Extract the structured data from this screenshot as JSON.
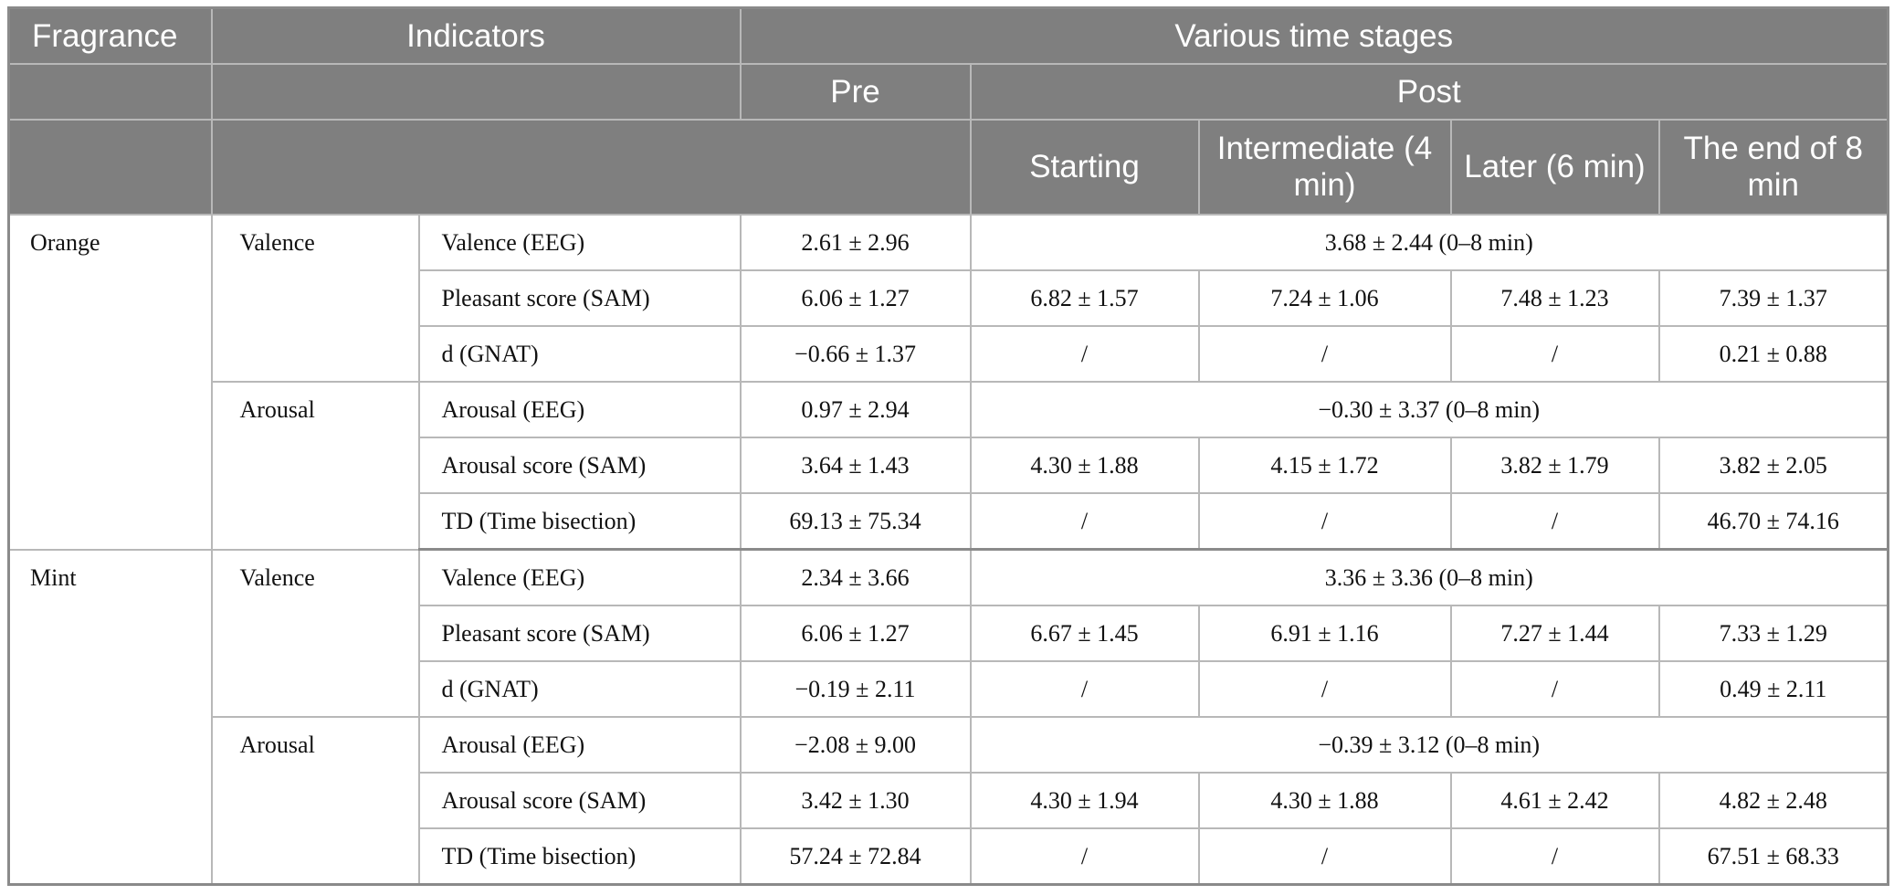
{
  "header": {
    "row1": {
      "fragrance": "Fragrance",
      "indicators": "Indicators",
      "time_stages": "Various time stages"
    },
    "row2": {
      "pre": "Pre",
      "post": "Post"
    },
    "row3": {
      "starting": "Starting",
      "intermediate": "Intermediate (4 min)",
      "later": "Later (6 min)",
      "end": "The end of 8 min"
    }
  },
  "blocks": [
    {
      "fragrance": "Orange",
      "groups": [
        {
          "name": "Valence",
          "rows": [
            {
              "indicator": "Valence (EEG)",
              "pre": "2.61 ± 2.96",
              "post_span": "3.68 ± 2.44 (0–8 min)"
            },
            {
              "indicator": "Pleasant score (SAM)",
              "pre": "6.06 ± 1.27",
              "starting": "6.82 ± 1.57",
              "intermediate": "7.24 ± 1.06",
              "later": "7.48 ± 1.23",
              "end": "7.39 ± 1.37"
            },
            {
              "indicator": "d (GNAT)",
              "pre": "−0.66 ± 1.37",
              "starting": "/",
              "intermediate": "/",
              "later": "/",
              "end": "0.21 ± 0.88"
            }
          ]
        },
        {
          "name": "Arousal",
          "rows": [
            {
              "indicator": "Arousal (EEG)",
              "pre": "0.97 ± 2.94",
              "post_span": "−0.30 ± 3.37 (0–8 min)"
            },
            {
              "indicator": "Arousal score (SAM)",
              "pre": "3.64 ± 1.43",
              "starting": "4.30 ± 1.88",
              "intermediate": "4.15 ± 1.72",
              "later": "3.82 ± 1.79",
              "end": "3.82 ± 2.05"
            },
            {
              "indicator": "TD (Time bisection)",
              "pre": "69.13 ± 75.34",
              "starting": "/",
              "intermediate": "/",
              "later": "/",
              "end": "46.70 ± 74.16"
            }
          ]
        }
      ]
    },
    {
      "fragrance": "Mint",
      "groups": [
        {
          "name": "Valence",
          "rows": [
            {
              "indicator": "Valence (EEG)",
              "pre": "2.34 ± 3.66",
              "post_span": "3.36 ± 3.36 (0–8 min)"
            },
            {
              "indicator": "Pleasant score (SAM)",
              "pre": "6.06 ± 1.27",
              "starting": "6.67 ± 1.45",
              "intermediate": "6.91 ± 1.16",
              "later": "7.27 ± 1.44",
              "end": "7.33 ± 1.29"
            },
            {
              "indicator": "d (GNAT)",
              "pre": "−0.19 ± 2.11",
              "starting": "/",
              "intermediate": "/",
              "later": "/",
              "end": "0.49 ± 2.11"
            }
          ]
        },
        {
          "name": "Arousal",
          "rows": [
            {
              "indicator": "Arousal (EEG)",
              "pre": "−2.08 ± 9.00",
              "post_span": "−0.39 ± 3.12 (0–8 min)"
            },
            {
              "indicator": "Arousal score (SAM)",
              "pre": "3.42 ± 1.30",
              "starting": "4.30 ± 1.94",
              "intermediate": "4.30 ± 1.88",
              "later": "4.61 ± 2.42",
              "end": "4.82 ± 2.48"
            },
            {
              "indicator": "TD (Time bisection)",
              "pre": "57.24 ± 72.84",
              "starting": "/",
              "intermediate": "/",
              "later": "/",
              "end": "67.51 ± 68.33"
            }
          ]
        }
      ]
    }
  ]
}
